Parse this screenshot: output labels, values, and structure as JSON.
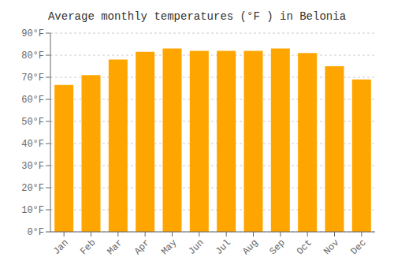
{
  "chart_data": {
    "type": "bar",
    "title": "Average monthly temperatures (°F ) in Belonia",
    "categories": [
      "Jan",
      "Feb",
      "Mar",
      "Apr",
      "May",
      "Jun",
      "Jul",
      "Aug",
      "Sep",
      "Oct",
      "Nov",
      "Dec"
    ],
    "values": [
      66.5,
      71.0,
      78.0,
      81.5,
      83.0,
      82.0,
      82.0,
      82.0,
      83.0,
      81.0,
      75.0,
      69.0
    ],
    "color": "#FFA500",
    "ylim": [
      0,
      90
    ],
    "yticks": [
      {
        "value": 0,
        "label": "0°F"
      },
      {
        "value": 10,
        "label": "10°F"
      },
      {
        "value": 20,
        "label": "20°F"
      },
      {
        "value": 30,
        "label": "30°F"
      },
      {
        "value": 40,
        "label": "40°F"
      },
      {
        "value": 50,
        "label": "50°F"
      },
      {
        "value": 60,
        "label": "60°F"
      },
      {
        "value": 70,
        "label": "70°F"
      },
      {
        "value": 80,
        "label": "80°F"
      },
      {
        "value": 90,
        "label": "90°F"
      }
    ],
    "grid": true
  }
}
